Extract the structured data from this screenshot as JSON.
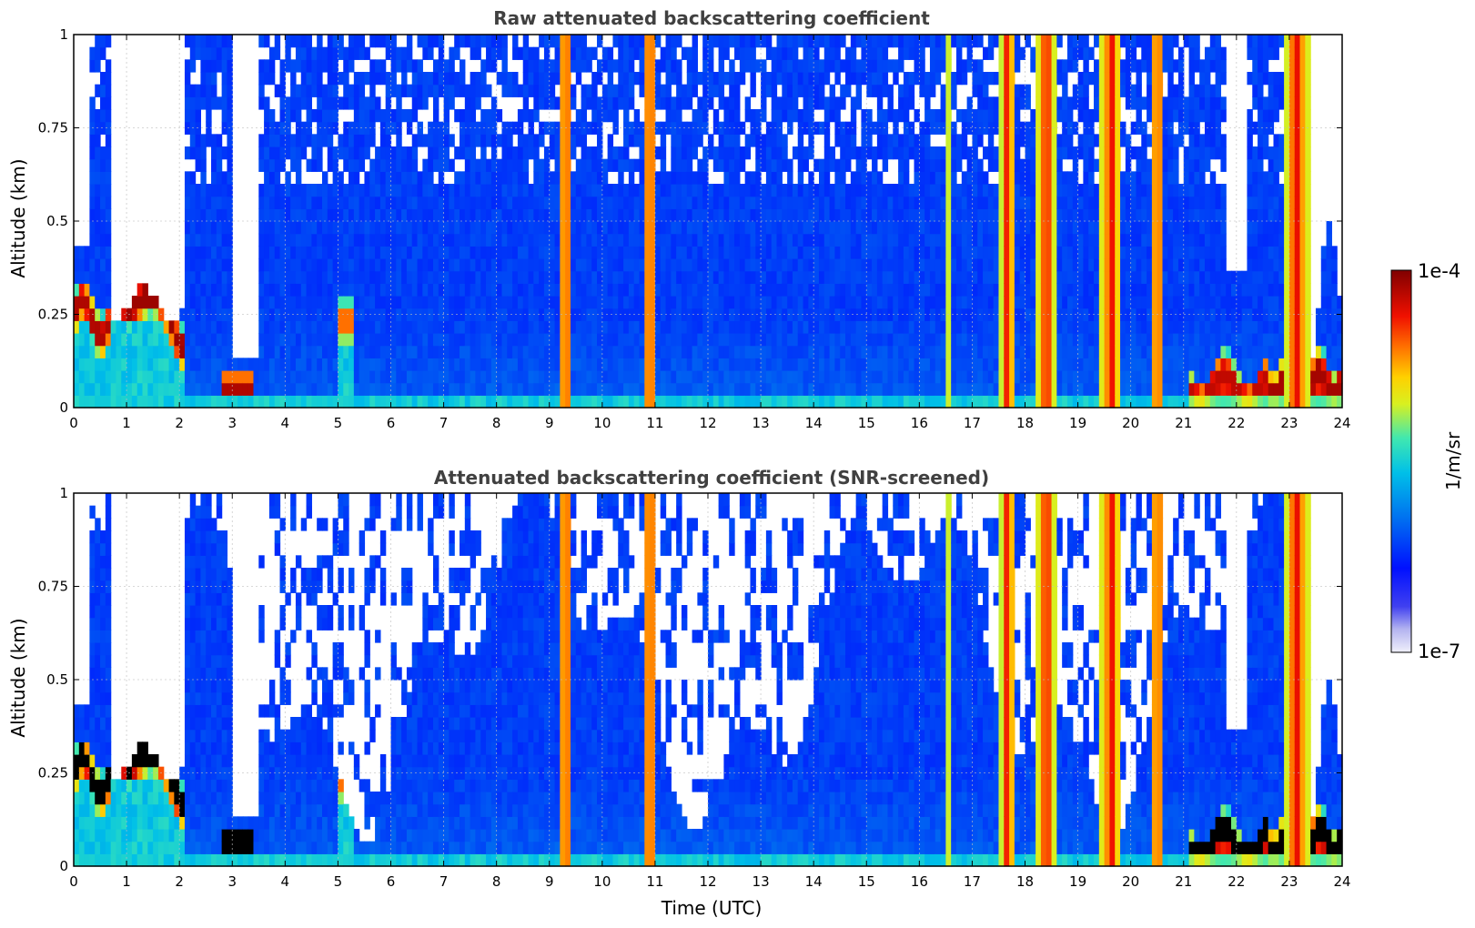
{
  "chart_data": [
    {
      "type": "heatmap",
      "title": "Raw attenuated backscattering coefficient",
      "xlabel": "",
      "ylabel": "Altitude (km)",
      "xlim": [
        0,
        24
      ],
      "ylim": [
        0,
        1
      ],
      "x_ticks": [
        "0",
        "1",
        "2",
        "3",
        "4",
        "5",
        "6",
        "7",
        "8",
        "9",
        "10",
        "11",
        "12",
        "13",
        "14",
        "15",
        "16",
        "17",
        "18",
        "19",
        "20",
        "21",
        "22",
        "23",
        "24"
      ],
      "y_ticks": [
        "0",
        "0.25",
        "0.5",
        "0.75",
        "1"
      ],
      "grid": true,
      "screened": false
    },
    {
      "type": "heatmap",
      "title": "Attenuated backscattering coefficient (SNR-screened)",
      "xlabel": "Time (UTC)",
      "ylabel": "Altitude (km)",
      "xlim": [
        0,
        24
      ],
      "ylim": [
        0,
        1
      ],
      "x_ticks": [
        "0",
        "1",
        "2",
        "3",
        "4",
        "5",
        "6",
        "7",
        "8",
        "9",
        "10",
        "11",
        "12",
        "13",
        "14",
        "15",
        "16",
        "17",
        "18",
        "19",
        "20",
        "21",
        "22",
        "23",
        "24"
      ],
      "y_ticks": [
        "0",
        "0.25",
        "0.5",
        "0.75",
        "1"
      ],
      "grid": true,
      "screened": true
    }
  ],
  "colorbar": {
    "label": "1/m/sr",
    "max_label": "1e-4",
    "min_label": "1e-7",
    "colormap": "jet-like with pale low end"
  },
  "features": {
    "precip_columns_utc": [
      [
        9.2,
        9.4
      ],
      [
        10.8,
        11.0
      ],
      [
        16.5,
        16.55
      ],
      [
        17.55,
        17.8
      ],
      [
        18.25,
        18.55
      ],
      [
        19.45,
        19.8
      ],
      [
        20.4,
        20.6
      ],
      [
        22.95,
        23.35
      ]
    ],
    "low_cloud_segments_utc": [
      [
        0,
        2.1
      ],
      [
        2.85,
        3.4
      ],
      [
        21.1,
        22.6
      ],
      [
        22.6,
        24
      ]
    ],
    "clear_gaps_utc": [
      [
        0.75,
        2.15
      ],
      [
        3.05,
        3.5
      ]
    ]
  }
}
